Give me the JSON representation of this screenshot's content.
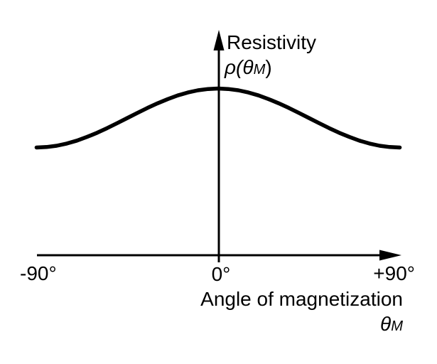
{
  "figure": {
    "background_color": "#ffffff",
    "ink_color": "#000000"
  },
  "labels": {
    "y_axis_title": "Resistivity",
    "y_axis_symbol_pre": "ρ(θ",
    "y_axis_symbol_sub": "M",
    "y_axis_symbol_post": ")",
    "x_tick_left": "-90°",
    "x_tick_center": "0°",
    "x_tick_right": "+90°",
    "x_axis_title": "Angle of magnetization",
    "x_axis_symbol_pre": "θ",
    "x_axis_symbol_sub": "M"
  },
  "chart_data": {
    "type": "line",
    "title": "",
    "xlabel": "Angle of magnetization θM",
    "ylabel": "Resistivity ρ(θM)",
    "x_tick_labels": [
      "-90°",
      "0°",
      "+90°"
    ],
    "x_tick_values": [
      -90,
      0,
      90
    ],
    "xlim": [
      -90,
      90
    ],
    "ylim_normalized": [
      0,
      1
    ],
    "grid": false,
    "legend": false,
    "series": [
      {
        "name": "resistivity_vs_angle",
        "shape": "cos_squared",
        "x_deg": [
          -90,
          -85,
          -80,
          -75,
          -70,
          -65,
          -60,
          -55,
          -50,
          -45,
          -40,
          -35,
          -30,
          -25,
          -20,
          -15,
          -10,
          -5,
          0,
          5,
          10,
          15,
          20,
          25,
          30,
          35,
          40,
          45,
          50,
          55,
          60,
          65,
          70,
          75,
          80,
          85,
          90
        ],
        "y_norm": [
          0,
          0.008,
          0.03,
          0.067,
          0.117,
          0.179,
          0.25,
          0.329,
          0.413,
          0.5,
          0.587,
          0.671,
          0.75,
          0.821,
          0.883,
          0.933,
          0.97,
          0.992,
          1,
          0.992,
          0.97,
          0.933,
          0.883,
          0.821,
          0.75,
          0.671,
          0.587,
          0.5,
          0.413,
          0.329,
          0.25,
          0.179,
          0.117,
          0.067,
          0.03,
          0.008,
          0
        ]
      }
    ]
  }
}
